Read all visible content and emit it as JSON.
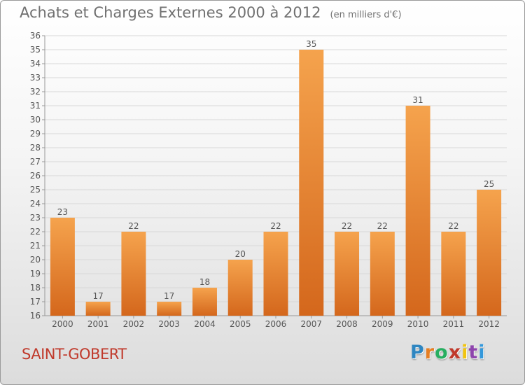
{
  "page": {
    "title": "Achats et Charges Externes 2000 à 2012",
    "unit": "(en milliers d'€)",
    "commune": "SAINT-GOBERT",
    "brand": "Proxiti"
  },
  "colors": {
    "bar_top": "#f5a34d",
    "bar_bottom": "#d4671c",
    "commune": "#c0392b",
    "brand_letters": [
      "#2e86c1",
      "#e67e22",
      "#27ae60",
      "#c0392b",
      "#f1c40f",
      "#8e44ad",
      "#3498db"
    ]
  },
  "chart_data": {
    "type": "bar",
    "categories": [
      "2000",
      "2001",
      "2002",
      "2003",
      "2004",
      "2005",
      "2006",
      "2007",
      "2008",
      "2009",
      "2010",
      "2011",
      "2012"
    ],
    "values": [
      23,
      17,
      22,
      17,
      18,
      20,
      22,
      35,
      22,
      22,
      31,
      22,
      25
    ],
    "data_labels": [
      "23",
      "17",
      "22",
      "17",
      "18",
      "20",
      "22",
      "35",
      "22",
      "22",
      "31",
      "22",
      "25"
    ],
    "ylim": [
      16,
      36
    ],
    "y_ticks": [
      16,
      17,
      18,
      19,
      20,
      21,
      22,
      23,
      24,
      25,
      26,
      27,
      28,
      29,
      30,
      31,
      32,
      33,
      34,
      35,
      36
    ],
    "grid": true,
    "legend": "none"
  }
}
